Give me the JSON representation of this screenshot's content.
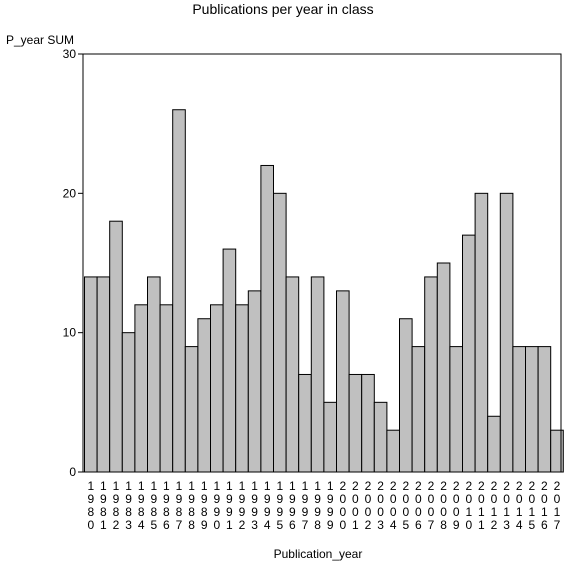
{
  "chart_data": {
    "type": "bar",
    "title": "Publications per year in class",
    "xlabel": "Publication_year",
    "ylabel": "P_year SUM",
    "ylim": [
      0,
      30
    ],
    "yticks": [
      "0",
      "10",
      "20",
      "30"
    ],
    "categories": [
      "1980",
      "1981",
      "1982",
      "1983",
      "1984",
      "1985",
      "1986",
      "1987",
      "1988",
      "1989",
      "1990",
      "1991",
      "1992",
      "1993",
      "1994",
      "1995",
      "1996",
      "1997",
      "1998",
      "1999",
      "2000",
      "2001",
      "2002",
      "2003",
      "2004",
      "2005",
      "2006",
      "2007",
      "2008",
      "2009",
      "2010",
      "2011",
      "2012",
      "2013",
      "2014",
      "2015",
      "2016",
      "2017"
    ],
    "values": [
      14,
      14,
      18,
      10,
      12,
      14,
      12,
      26,
      9,
      11,
      12,
      16,
      12,
      13,
      22,
      20,
      14,
      7,
      14,
      5,
      13,
      7,
      7,
      5,
      3,
      11,
      9,
      14,
      15,
      9,
      17,
      20,
      4,
      20,
      9,
      9,
      9,
      3
    ],
    "bar_color": "#c0c0c0",
    "grid": false,
    "legend": "none"
  }
}
